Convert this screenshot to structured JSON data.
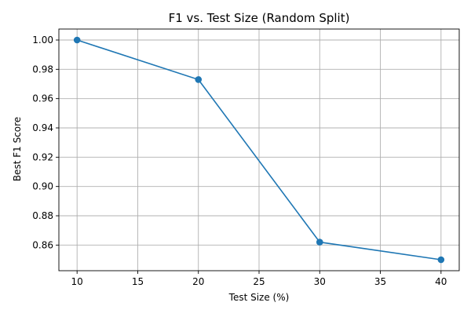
{
  "chart_data": {
    "type": "line",
    "title": "F1 vs. Test Size (Random Split)",
    "xlabel": "Test Size (%)",
    "ylabel": "Best F1 Score",
    "x": [
      10,
      20,
      30,
      40
    ],
    "series": [
      {
        "values": [
          1.0,
          0.973,
          0.862,
          0.85
        ]
      }
    ],
    "xlim": [
      8.5,
      41.5
    ],
    "ylim": [
      0.8425,
      1.0075
    ],
    "xticks": [
      10,
      15,
      20,
      25,
      30,
      35,
      40
    ],
    "xtick_labels": [
      "10",
      "15",
      "20",
      "25",
      "30",
      "35",
      "40"
    ],
    "yticks": [
      0.86,
      0.88,
      0.9,
      0.92,
      0.94,
      0.96,
      0.98,
      1.0
    ],
    "ytick_labels": [
      "0.86",
      "0.88",
      "0.90",
      "0.92",
      "0.94",
      "0.96",
      "0.98",
      "1.00"
    ],
    "grid": true,
    "line_color": "#1f77b4",
    "grid_color": "#b0b0b0",
    "marker": "circle"
  }
}
